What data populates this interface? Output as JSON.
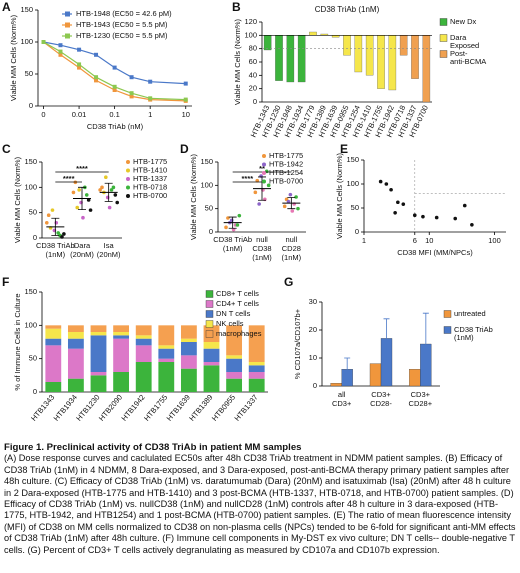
{
  "chart_data": [
    {
      "panel": "A",
      "type": "line",
      "xlog": true,
      "ylabel": "Viable MM Cells (Norm%)",
      "xlabel": "CD38 TriAb (nM)",
      "x": [
        0.001,
        0.003,
        0.01,
        0.03,
        0.1,
        0.3,
        1,
        10
      ],
      "xlim": [
        0.0007,
        15
      ],
      "xticks": [
        {
          "value": 0.001,
          "label": "0"
        },
        0.01,
        0.1,
        1,
        10
      ],
      "ylim": [
        0,
        150
      ],
      "yticks": [
        0,
        50,
        100,
        150
      ],
      "series": [
        {
          "name": "HTB-1948 (EC50 = 42.6 pM)",
          "color": "#4a78c8",
          "values": [
            100,
            95,
            88,
            80,
            60,
            45,
            38,
            35
          ]
        },
        {
          "name": "HTB-1943 (EC50 = 5.5 pM)",
          "color": "#f0963c",
          "values": [
            100,
            80,
            60,
            40,
            25,
            15,
            10,
            8
          ]
        },
        {
          "name": "HTB-1230 (EC50 = 5.5 pM)",
          "color": "#8cc850",
          "values": [
            100,
            85,
            65,
            45,
            30,
            20,
            12,
            10
          ]
        }
      ]
    },
    {
      "panel": "B",
      "type": "bar",
      "title": "CD38 TriAb (1nM)",
      "ylabel": "Viable MM Cells (Norm%)",
      "categories": [
        "HTB-1343",
        "HTB-1230",
        "HTB-1948",
        "HTB-1934",
        "HTB-1779",
        "HTB-1389",
        "HTB-1639",
        "HTB-0955",
        "HTB-1254",
        "HTB-1410",
        "HTB-1755",
        "HTB-1942",
        "HTB-0718",
        "HTB-1337",
        "HTB-0700"
      ],
      "values": [
        78,
        32,
        30,
        30,
        105,
        102,
        97,
        70,
        45,
        40,
        20,
        18,
        70,
        35,
        0
      ],
      "colors": [
        "#3cb43c",
        "#3cb43c",
        "#3cb43c",
        "#3cb43c",
        "#f5e64b",
        "#f5e64b",
        "#f5e64b",
        "#f5e64b",
        "#f5e64b",
        "#f5e64b",
        "#f5e64b",
        "#f5e64b",
        "#f0a050",
        "#f0a050",
        "#f0a050"
      ],
      "baseline": 100,
      "reference_line": 80,
      "ylim": [
        0,
        120
      ],
      "yticks": [
        0,
        20,
        40,
        60,
        80,
        100,
        120
      ],
      "legend": [
        {
          "name": "New Dx",
          "color": "#3cb43c"
        },
        {
          "name": [
            "Dara",
            "Exposed"
          ],
          "color": "#f5e64b"
        },
        {
          "name": [
            "Post-",
            "anti-BCMA"
          ],
          "color": "#f0a050"
        }
      ]
    },
    {
      "panel": "C",
      "type": "strip",
      "ylabel": "Viable MM Cells (Norm%)",
      "categories": [
        [
          "CD38 TriAb",
          "(1nM)"
        ],
        [
          "Dara",
          "(20nM)"
        ],
        [
          "Isa",
          "(20nM)"
        ]
      ],
      "ylim": [
        0,
        150
      ],
      "yticks": [
        0,
        50,
        100,
        150
      ],
      "series": [
        {
          "name": "HTB-1775",
          "color": "#f0963c",
          "values": [
            [
              30,
              45
            ],
            [
              90,
              110
            ],
            [
              95,
              100
            ]
          ]
        },
        {
          "name": "HTB-1410",
          "color": "#e6c828",
          "values": [
            [
              20,
              55
            ],
            [
              60,
              95
            ],
            [
              90,
              120
            ]
          ]
        },
        {
          "name": "HTB-1337",
          "color": "#c864c8",
          "values": [
            [
              15,
              30
            ],
            [
              70,
              40
            ],
            [
              80,
              60
            ]
          ]
        },
        {
          "name": "HTB-0718",
          "color": "#3cb43c",
          "values": [
            [
              10,
              5
            ],
            [
              100,
              85
            ],
            [
              95,
              100
            ]
          ]
        },
        {
          "name": "HTB-0700",
          "color": "#111111",
          "values": [
            [
              2,
              8
            ],
            [
              75,
              55
            ],
            [
              85,
              70
            ]
          ]
        }
      ],
      "means": [
        22,
        78,
        90
      ],
      "sd": [
        17,
        22,
        18
      ],
      "significance": [
        {
          "label": "****",
          "from": 0,
          "to": 1
        },
        {
          "label": "****",
          "from": 0,
          "to": 2
        }
      ]
    },
    {
      "panel": "D",
      "type": "strip",
      "ylabel": "Viable MM Cells (Norm%)",
      "categories": [
        [
          "CD38 TriAb",
          "(1nM)"
        ],
        [
          "null",
          "CD38",
          "(1nM)"
        ],
        [
          "null",
          "CD28",
          "(1nM)"
        ]
      ],
      "ylim": [
        0,
        150
      ],
      "yticks": [
        0,
        50,
        100,
        150
      ],
      "series": [
        {
          "name": "HTB-1775",
          "color": "#f0963c",
          "values": [
            [
              10,
              30
            ],
            [
              85,
              110
            ],
            [
              55,
              70
            ]
          ]
        },
        {
          "name": "HTB-1942",
          "color": "#8c64c8",
          "values": [
            [
              20,
              25
            ],
            [
              60,
              120
            ],
            [
              65,
              80
            ]
          ]
        },
        {
          "name": "HTB-1254",
          "color": "#e678b4",
          "values": [
            [
              5,
              15
            ],
            [
              90,
              70
            ],
            [
              45,
              60
            ]
          ]
        },
        {
          "name": "HTB-0700",
          "color": "#3cb43c",
          "values": [
            [
              15,
              35
            ],
            [
              130,
              100
            ],
            [
              75,
              50
            ]
          ]
        }
      ],
      "means": [
        20,
        93,
        62
      ],
      "sd": [
        12,
        25,
        12
      ],
      "significance": [
        {
          "label": "****",
          "from": 0,
          "to": 1
        },
        {
          "label": "**",
          "from": 0,
          "to": 2
        }
      ]
    },
    {
      "panel": "E",
      "type": "scatter",
      "xlog": true,
      "ylabel": "Viable MM Cells (Norm%)",
      "xlabel": "CD38 MFI (MM/NPCs)",
      "x": [
        1.8,
        2.2,
        2.6,
        3,
        3.3,
        4,
        6,
        8,
        13,
        25,
        35,
        45
      ],
      "values": [
        105,
        100,
        88,
        40,
        62,
        58,
        35,
        32,
        30,
        28,
        55,
        15
      ],
      "xlim": [
        1,
        150
      ],
      "xticks": [
        1,
        6,
        10,
        100
      ],
      "ylim": [
        0,
        150
      ],
      "yticks": [
        0,
        50,
        100,
        150
      ],
      "xref": 6,
      "yref": 80,
      "color": "#111111"
    },
    {
      "panel": "F",
      "type": "stacked_bar",
      "ylabel": "% of Immune Cells in Culture",
      "categories": [
        "HTB1343",
        "HTB1934",
        "HTB1230",
        "HTB2090",
        "HTB1942",
        "HTB1755",
        "HTB1639",
        "HTB1389",
        "HTB0955",
        "HTB1337"
      ],
      "ylim": [
        0,
        150
      ],
      "yticks": [
        0,
        50,
        100,
        150
      ],
      "series": [
        {
          "name": "CD8+ T cells",
          "color": "#3cb43c",
          "values": [
            15,
            20,
            25,
            30,
            45,
            45,
            35,
            40,
            20,
            20
          ]
        },
        {
          "name": "CD4+ T cells",
          "color": "#dc78c8",
          "values": [
            55,
            45,
            5,
            50,
            25,
            5,
            20,
            5,
            10,
            10
          ]
        },
        {
          "name": "DN T cells",
          "color": "#4a78c8",
          "values": [
            10,
            15,
            55,
            5,
            10,
            15,
            20,
            20,
            20,
            10
          ]
        },
        {
          "name": "NK cells",
          "color": "#f5e64b",
          "values": [
            15,
            10,
            5,
            5,
            5,
            5,
            5,
            10,
            5,
            5
          ]
        },
        {
          "name": "macrophages",
          "color": "#f5a050",
          "values": [
            5,
            10,
            10,
            10,
            15,
            30,
            20,
            25,
            45,
            55
          ]
        }
      ]
    },
    {
      "panel": "G",
      "type": "grouped_bar",
      "ylabel": "% CD107a/CD107b+",
      "categories": [
        [
          "all",
          "CD3+"
        ],
        [
          "CD3+",
          "CD28-"
        ],
        [
          "CD3+",
          "CD28+"
        ]
      ],
      "ylim": [
        0,
        30
      ],
      "yticks": [
        0,
        10,
        20,
        30
      ],
      "series": [
        {
          "name": "untreated",
          "color": "#f0963c",
          "values": [
            1,
            8,
            6
          ]
        },
        {
          "name": [
            "CD38 TriAb",
            "(1nM)"
          ],
          "color": "#4a78c8",
          "values": [
            6,
            17,
            15
          ],
          "errors": [
            4,
            7,
            11
          ]
        }
      ]
    }
  ],
  "caption": {
    "title": "Figure 1. Preclinical activity of CD38 TriAb in patient MM samples",
    "text": "(A) Dose response curves and caclulated EC50s after 48h CD38 TriAb treatment in NDMM patient samples. (B) Efficacy of CD38 TriAb (1nM) in 4 NDMM, 8 Dara-exposed, and 3 Dara-exposed, post-anti-BCMA therapy primary patient samples after 48h culture. (C) Efficacy of CD38 TriAb (1nM) vs. daratumumab (Dara) (20nM) and isatuximab (Isa) (20nM) after 48 h culture in 2 Dara-exposed (HTB-1775 and HTB-1410) and 3 post-BCMA (HTB-1337, HTB-0718, and HTB-0700) patient samples. (D) Efficacy of CD38 TriAb (1nM) vs. nullCD38 (1nM) and nullCD28 (1nM) controls after 48 h culture in 3 dara-exposed (HTB-1775, HTB-1942, and HTB1254) and 1 post-BCMA (HTB-0700) patient samples. (E) The ratio of mean fluorescence intensity (MFI) of CD38 on MM cells normalized to CD38 on non-plasma cells (NPCs) tended to be 6-fold for significant anti-MM effects of CD38 TriAb (1nM) after 48h culture. (F) Immune cell components in My-DST ex vivo culture; DN T cells-- double-negative T cells. (G) Percent of CD3+ T cells actively degranulating as measured by CD107a and CD107b expression."
  }
}
